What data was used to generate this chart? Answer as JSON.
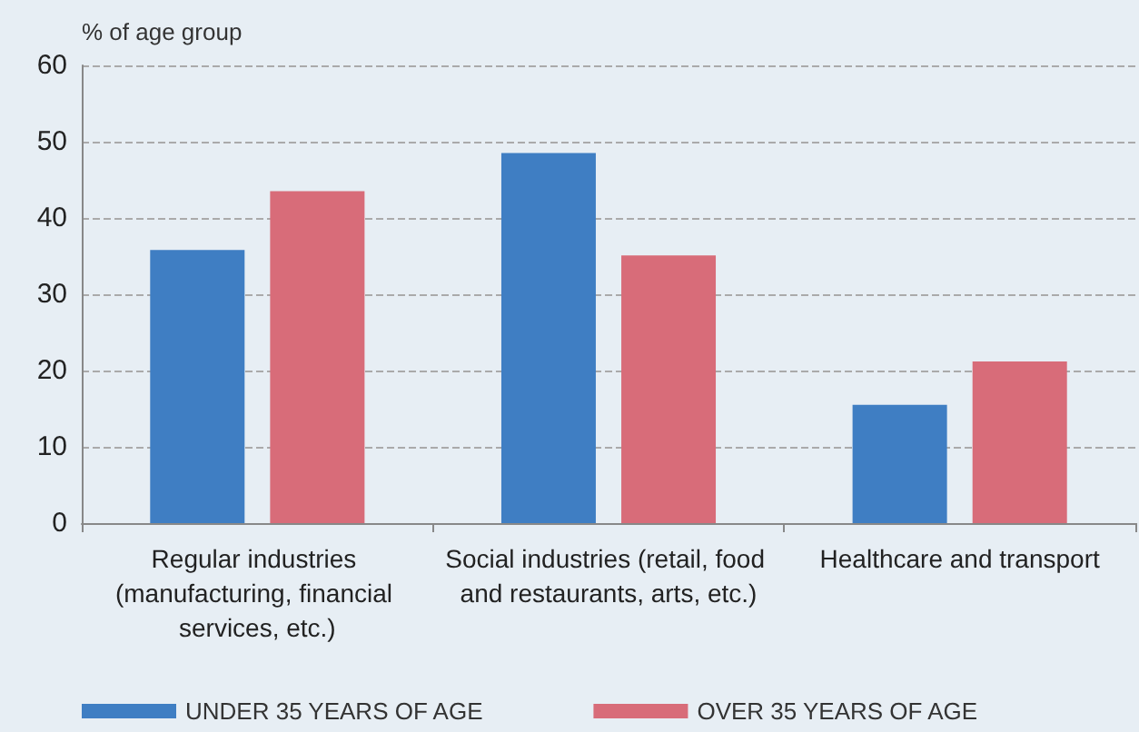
{
  "chart_data": {
    "type": "bar",
    "ylabel": "% of age group",
    "categories": [
      "Regular industries (manufacturing, financial services, etc.)",
      "Social industries (retail, food and restaurants, arts, etc.)",
      "Healthcare and transport"
    ],
    "series": [
      {
        "name": "UNDER 35 YEARS OF AGE",
        "color": "#3f7ec3",
        "values": [
          35.8,
          48.5,
          15.5
        ]
      },
      {
        "name": "OVER 35 YEARS OF AGE",
        "color": "#d86c79",
        "values": [
          43.5,
          35.1,
          21.2
        ]
      }
    ],
    "ylim": [
      0,
      60
    ],
    "yticks": [
      0,
      10,
      20,
      30,
      40,
      50,
      60
    ],
    "grid": "y",
    "legend": "bottom left"
  }
}
